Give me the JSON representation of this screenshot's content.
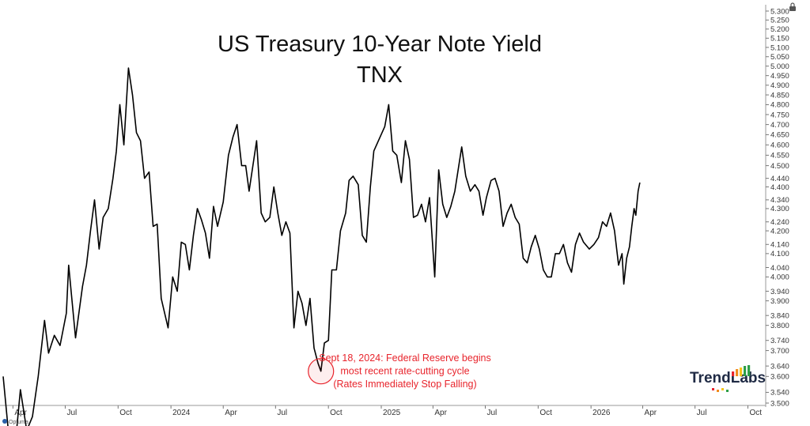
{
  "chart_data": {
    "type": "line",
    "title": "US Treasury 10-Year Note Yield",
    "subtitle": "TNX",
    "xlabel": "",
    "ylabel": "",
    "x_range": [
      "2023-03-15",
      "2026-11-01"
    ],
    "ylim": [
      3.5,
      5.3
    ],
    "y_scale": "log",
    "grid": false,
    "y_ticks": [
      "5.300",
      "5.250",
      "5.200",
      "5.150",
      "5.100",
      "5.050",
      "5.000",
      "4.950",
      "4.900",
      "4.850",
      "4.800",
      "4.750",
      "4.700",
      "4.650",
      "4.600",
      "4.550",
      "4.500",
      "4.440",
      "4.400",
      "4.340",
      "4.300",
      "4.240",
      "4.200",
      "4.140",
      "4.100",
      "4.040",
      "4.000",
      "3.940",
      "3.900",
      "3.840",
      "3.800",
      "3.740",
      "3.700",
      "3.640",
      "3.600",
      "3.540",
      "3.500"
    ],
    "x_ticks": [
      {
        "date": "2023-04-01",
        "label": "Apr"
      },
      {
        "date": "2023-07-01",
        "label": "Jul"
      },
      {
        "date": "2023-10-01",
        "label": "Oct"
      },
      {
        "date": "2024-01-01",
        "label": "2024"
      },
      {
        "date": "2024-04-01",
        "label": "Apr"
      },
      {
        "date": "2024-07-01",
        "label": "Jul"
      },
      {
        "date": "2024-10-01",
        "label": "Oct"
      },
      {
        "date": "2025-01-01",
        "label": "2025"
      },
      {
        "date": "2025-04-01",
        "label": "Apr"
      },
      {
        "date": "2025-07-01",
        "label": "Jul"
      },
      {
        "date": "2025-10-01",
        "label": "Oct"
      },
      {
        "date": "2026-01-01",
        "label": "2026"
      },
      {
        "date": "2026-04-01",
        "label": "Apr"
      },
      {
        "date": "2026-07-01",
        "label": "Jul"
      },
      {
        "date": "2026-10-01",
        "label": "Oct"
      }
    ],
    "series": [
      {
        "color": "#000000",
        "points": [
          [
            "2023-03-15",
            3.6
          ],
          [
            "2023-03-24",
            3.4
          ],
          [
            "2023-04-05",
            3.35
          ],
          [
            "2023-04-14",
            3.55
          ],
          [
            "2023-04-25",
            3.4
          ],
          [
            "2023-05-05",
            3.45
          ],
          [
            "2023-05-15",
            3.6
          ],
          [
            "2023-05-26",
            3.82
          ],
          [
            "2023-06-02",
            3.69
          ],
          [
            "2023-06-12",
            3.76
          ],
          [
            "2023-06-22",
            3.72
          ],
          [
            "2023-07-03",
            3.85
          ],
          [
            "2023-07-07",
            4.05
          ],
          [
            "2023-07-19",
            3.75
          ],
          [
            "2023-07-31",
            3.96
          ],
          [
            "2023-08-07",
            4.05
          ],
          [
            "2023-08-14",
            4.2
          ],
          [
            "2023-08-21",
            4.34
          ],
          [
            "2023-08-29",
            4.12
          ],
          [
            "2023-09-05",
            4.26
          ],
          [
            "2023-09-14",
            4.3
          ],
          [
            "2023-09-22",
            4.44
          ],
          [
            "2023-09-28",
            4.57
          ],
          [
            "2023-10-04",
            4.8
          ],
          [
            "2023-10-11",
            4.6
          ],
          [
            "2023-10-19",
            4.99
          ],
          [
            "2023-10-26",
            4.85
          ],
          [
            "2023-11-02",
            4.66
          ],
          [
            "2023-11-09",
            4.62
          ],
          [
            "2023-11-16",
            4.44
          ],
          [
            "2023-11-24",
            4.47
          ],
          [
            "2023-12-01",
            4.22
          ],
          [
            "2023-12-08",
            4.23
          ],
          [
            "2023-12-15",
            3.91
          ],
          [
            "2023-12-27",
            3.79
          ],
          [
            "2024-01-04",
            4.0
          ],
          [
            "2024-01-12",
            3.94
          ],
          [
            "2024-01-19",
            4.15
          ],
          [
            "2024-01-26",
            4.14
          ],
          [
            "2024-02-02",
            4.03
          ],
          [
            "2024-02-09",
            4.18
          ],
          [
            "2024-02-16",
            4.3
          ],
          [
            "2024-02-23",
            4.25
          ],
          [
            "2024-03-01",
            4.19
          ],
          [
            "2024-03-08",
            4.08
          ],
          [
            "2024-03-15",
            4.31
          ],
          [
            "2024-03-22",
            4.22
          ],
          [
            "2024-04-01",
            4.33
          ],
          [
            "2024-04-10",
            4.55
          ],
          [
            "2024-04-18",
            4.64
          ],
          [
            "2024-04-25",
            4.7
          ],
          [
            "2024-05-03",
            4.5
          ],
          [
            "2024-05-10",
            4.5
          ],
          [
            "2024-05-16",
            4.38
          ],
          [
            "2024-05-29",
            4.62
          ],
          [
            "2024-06-06",
            4.28
          ],
          [
            "2024-06-13",
            4.24
          ],
          [
            "2024-06-21",
            4.26
          ],
          [
            "2024-06-28",
            4.4
          ],
          [
            "2024-07-05",
            4.28
          ],
          [
            "2024-07-12",
            4.18
          ],
          [
            "2024-07-19",
            4.24
          ],
          [
            "2024-07-26",
            4.19
          ],
          [
            "2024-08-02",
            3.79
          ],
          [
            "2024-08-09",
            3.94
          ],
          [
            "2024-08-16",
            3.89
          ],
          [
            "2024-08-23",
            3.8
          ],
          [
            "2024-08-30",
            3.91
          ],
          [
            "2024-09-06",
            3.71
          ],
          [
            "2024-09-13",
            3.65
          ],
          [
            "2024-09-18",
            3.62
          ],
          [
            "2024-09-24",
            3.73
          ],
          [
            "2024-10-01",
            3.74
          ],
          [
            "2024-10-07",
            4.03
          ],
          [
            "2024-10-15",
            4.03
          ],
          [
            "2024-10-22",
            4.2
          ],
          [
            "2024-10-31",
            4.28
          ],
          [
            "2024-11-06",
            4.43
          ],
          [
            "2024-11-13",
            4.45
          ],
          [
            "2024-11-22",
            4.41
          ],
          [
            "2024-11-29",
            4.18
          ],
          [
            "2024-12-06",
            4.15
          ],
          [
            "2024-12-13",
            4.4
          ],
          [
            "2024-12-19",
            4.57
          ],
          [
            "2024-12-27",
            4.62
          ],
          [
            "2025-01-07",
            4.69
          ],
          [
            "2025-01-14",
            4.8
          ],
          [
            "2025-01-21",
            4.57
          ],
          [
            "2025-01-28",
            4.55
          ],
          [
            "2025-02-05",
            4.42
          ],
          [
            "2025-02-12",
            4.62
          ],
          [
            "2025-02-19",
            4.53
          ],
          [
            "2025-02-26",
            4.26
          ],
          [
            "2025-03-05",
            4.27
          ],
          [
            "2025-03-12",
            4.32
          ],
          [
            "2025-03-19",
            4.24
          ],
          [
            "2025-03-26",
            4.35
          ],
          [
            "2025-04-04",
            4.0
          ],
          [
            "2025-04-11",
            4.48
          ],
          [
            "2025-04-18",
            4.32
          ],
          [
            "2025-04-25",
            4.26
          ],
          [
            "2025-05-02",
            4.31
          ],
          [
            "2025-05-09",
            4.38
          ],
          [
            "2025-05-21",
            4.59
          ],
          [
            "2025-05-28",
            4.45
          ],
          [
            "2025-06-05",
            4.38
          ],
          [
            "2025-06-13",
            4.41
          ],
          [
            "2025-06-20",
            4.38
          ],
          [
            "2025-06-27",
            4.27
          ],
          [
            "2025-07-03",
            4.35
          ],
          [
            "2025-07-11",
            4.43
          ],
          [
            "2025-07-18",
            4.44
          ],
          [
            "2025-07-25",
            4.38
          ],
          [
            "2025-08-01",
            4.22
          ],
          [
            "2025-08-08",
            4.28
          ],
          [
            "2025-08-15",
            4.32
          ],
          [
            "2025-08-22",
            4.26
          ],
          [
            "2025-08-29",
            4.23
          ],
          [
            "2025-09-05",
            4.08
          ],
          [
            "2025-09-12",
            4.06
          ],
          [
            "2025-09-19",
            4.13
          ],
          [
            "2025-09-26",
            4.18
          ],
          [
            "2025-10-03",
            4.12
          ],
          [
            "2025-10-10",
            4.03
          ],
          [
            "2025-10-17",
            4.0
          ],
          [
            "2025-10-24",
            4.0
          ],
          [
            "2025-10-31",
            4.1
          ],
          [
            "2025-11-07",
            4.1
          ],
          [
            "2025-11-14",
            4.14
          ],
          [
            "2025-11-21",
            4.06
          ],
          [
            "2025-11-28",
            4.02
          ],
          [
            "2025-12-05",
            4.14
          ],
          [
            "2025-12-12",
            4.19
          ],
          [
            "2025-12-19",
            4.15
          ],
          [
            "2025-12-29",
            4.12
          ],
          [
            "2026-01-06",
            4.14
          ],
          [
            "2026-01-14",
            4.17
          ],
          [
            "2026-01-21",
            4.24
          ],
          [
            "2026-01-28",
            4.22
          ],
          [
            "2026-02-04",
            4.28
          ],
          [
            "2026-02-11",
            4.2
          ],
          [
            "2026-02-18",
            4.05
          ],
          [
            "2026-02-24",
            4.1
          ],
          [
            "2026-02-27",
            3.97
          ],
          [
            "2026-03-04",
            4.08
          ],
          [
            "2026-03-09",
            4.13
          ],
          [
            "2026-03-13",
            4.22
          ],
          [
            "2026-03-17",
            4.3
          ],
          [
            "2026-03-20",
            4.27
          ],
          [
            "2026-03-24",
            4.38
          ],
          [
            "2026-03-27",
            4.42
          ]
        ]
      }
    ],
    "annotation": {
      "date": "2024-09-18",
      "value": 3.62,
      "color": "#e8242c",
      "lines": [
        "Sept 18, 2024: Federal Reserve begins",
        "most recent rate-cutting cycle",
        "(Rates Immediately Stop Falling)"
      ]
    },
    "logo": {
      "text": "TrendLabs",
      "colors": [
        "#e8242c",
        "#f28c1e",
        "#f5c518",
        "#2e9f48"
      ]
    },
    "footer": "Optuma"
  }
}
